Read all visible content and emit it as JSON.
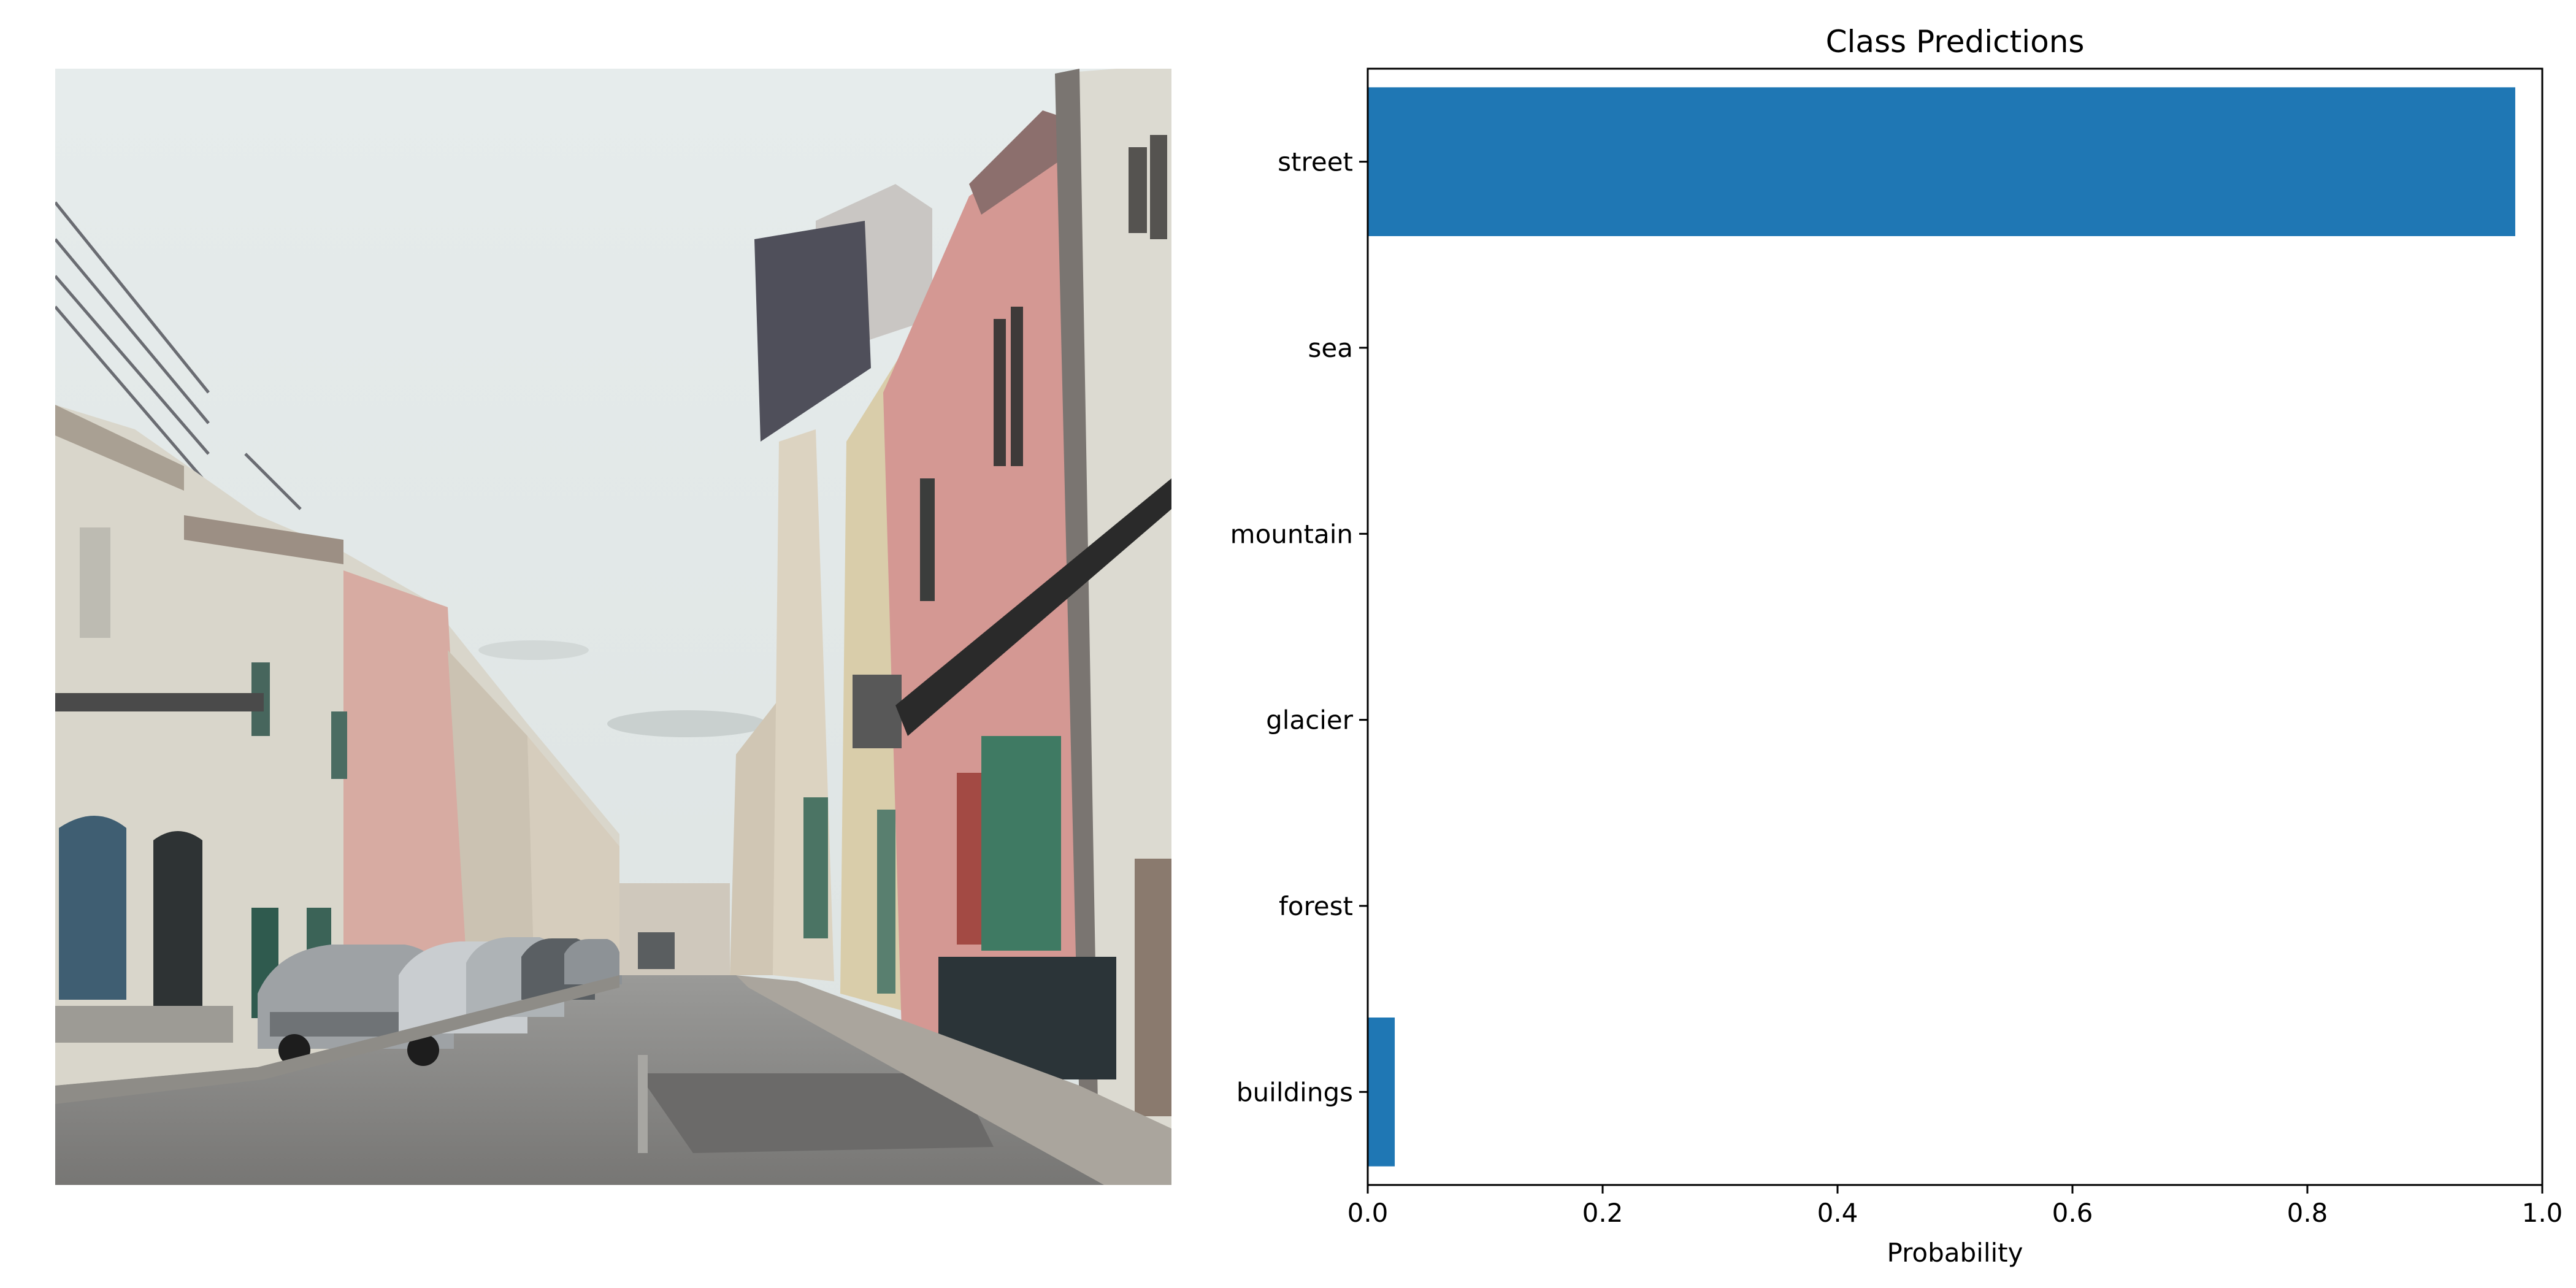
{
  "photo": {
    "subject": "street-scene"
  },
  "chart_data": {
    "type": "bar",
    "orientation": "horizontal",
    "title": "Class Predictions",
    "xlabel": "Probability",
    "ylabel": "",
    "xlim": [
      0,
      1.0
    ],
    "x_ticks": [
      "0.0",
      "0.2",
      "0.4",
      "0.6",
      "0.8",
      "1.0"
    ],
    "categories": [
      "street",
      "sea",
      "mountain",
      "glacier",
      "forest",
      "buildings"
    ],
    "values": [
      0.977,
      0.0,
      0.0,
      0.0,
      0.0,
      0.023
    ],
    "bar_color": "#1f77b4",
    "grid": false,
    "legend": "none"
  }
}
